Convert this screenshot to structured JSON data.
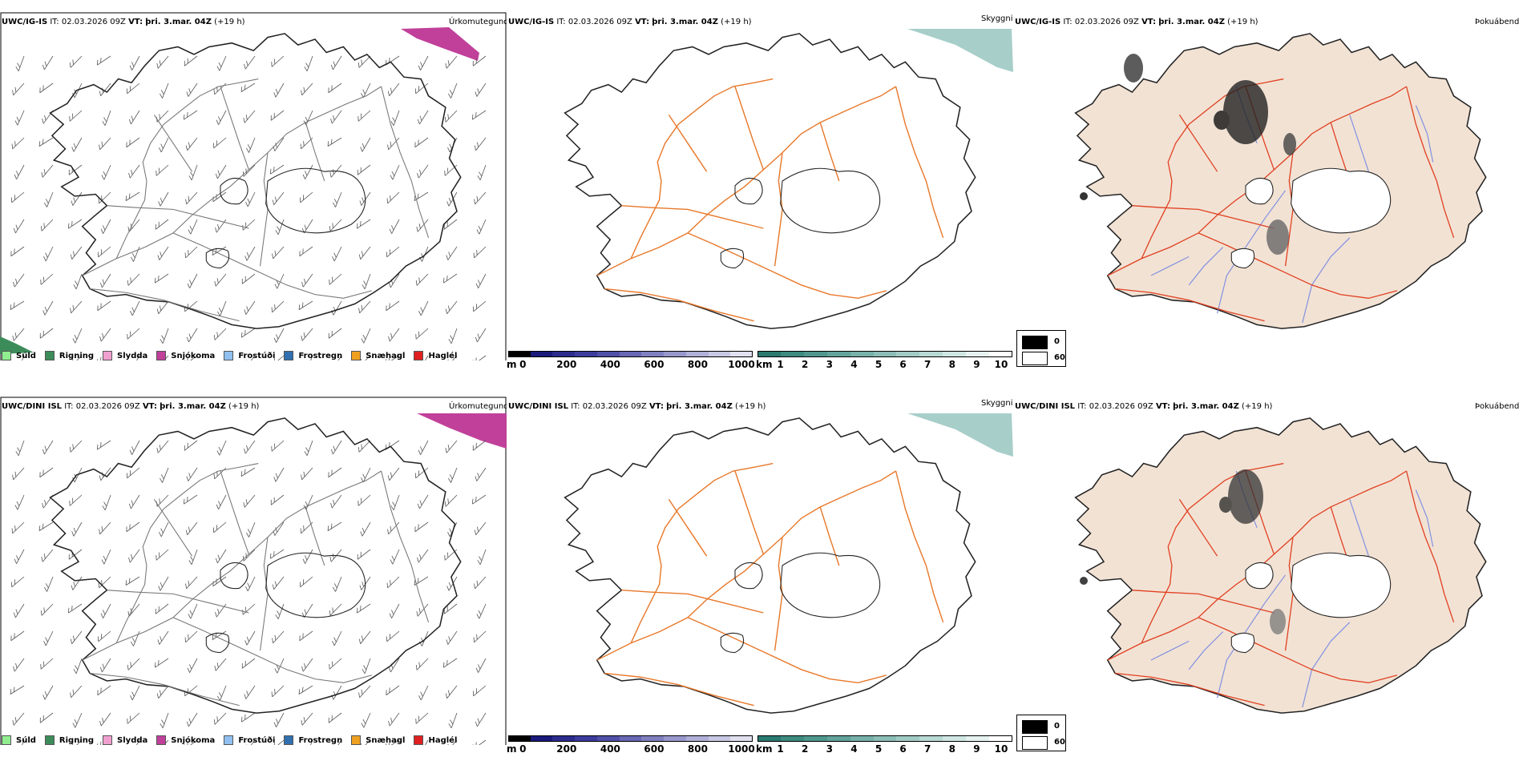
{
  "rows": [
    {
      "model": "UWC/IG-IS",
      "it_label": "IT:",
      "it": "02.03.2026 09Z",
      "vt_label": "VT:",
      "vt": "þri. 3.mar. 04Z",
      "lead": "(+19 h)"
    },
    {
      "model": "UWC/DINI ISL",
      "it_label": "IT:",
      "it": "02.03.2026 09Z",
      "vt_label": "VT:",
      "vt": "þri. 3.mar. 04Z",
      "lead": "(+19 h)"
    }
  ],
  "panel_titles": {
    "precip_type": "Úrkomutegund",
    "visibility": "Skyggni",
    "fog": "Þokuábendi"
  },
  "precip_legend": [
    {
      "label": "Súld",
      "color": "#90ee90"
    },
    {
      "label": "Rigning",
      "color": "#3c8c5a"
    },
    {
      "label": "Slydda",
      "color": "#f0a0d0"
    },
    {
      "label": "Snjókoma",
      "color": "#c0409a"
    },
    {
      "label": "Frostúði",
      "color": "#90c0f0"
    },
    {
      "label": "Frostregn",
      "color": "#3070b0"
    },
    {
      "label": "Snæhagl",
      "color": "#f0a020"
    },
    {
      "label": "Haglél",
      "color": "#e02020"
    }
  ],
  "elevation_bar": {
    "unit": "m",
    "ticks": [
      "0",
      "200",
      "400",
      "600",
      "800",
      "1000"
    ],
    "colors": [
      "#000000",
      "#1a1a7a",
      "#2c2c8c",
      "#3c3c9c",
      "#5050a8",
      "#6868b4",
      "#8080c0",
      "#9898cc",
      "#b0b0d8",
      "#c8c8e4",
      "#e0e0f0"
    ]
  },
  "visibility_bar": {
    "unit": "km",
    "ticks": [
      "1",
      "2",
      "3",
      "4",
      "5",
      "6",
      "7",
      "8",
      "9",
      "10"
    ],
    "colors": [
      "#2a7a70",
      "#3d8a80",
      "#4f978e",
      "#62a49b",
      "#77b1a9",
      "#8cbeb7",
      "#a2cbc5",
      "#b8d9d4",
      "#cfe6e2",
      "#e6f2f0",
      "#ffffff"
    ]
  },
  "fog_legend": [
    {
      "label": "0",
      "color": "#000000"
    },
    {
      "label": "60",
      "color": "#ffffff"
    }
  ],
  "colors": {
    "snow": "#c0409a",
    "rain": "#3c8c5a",
    "roads": "#e8782a",
    "roads_fog": "#e04020",
    "rivers": "#8090e0",
    "land_fog": "#f2e2d4",
    "vis_low": "#5ea69c"
  }
}
